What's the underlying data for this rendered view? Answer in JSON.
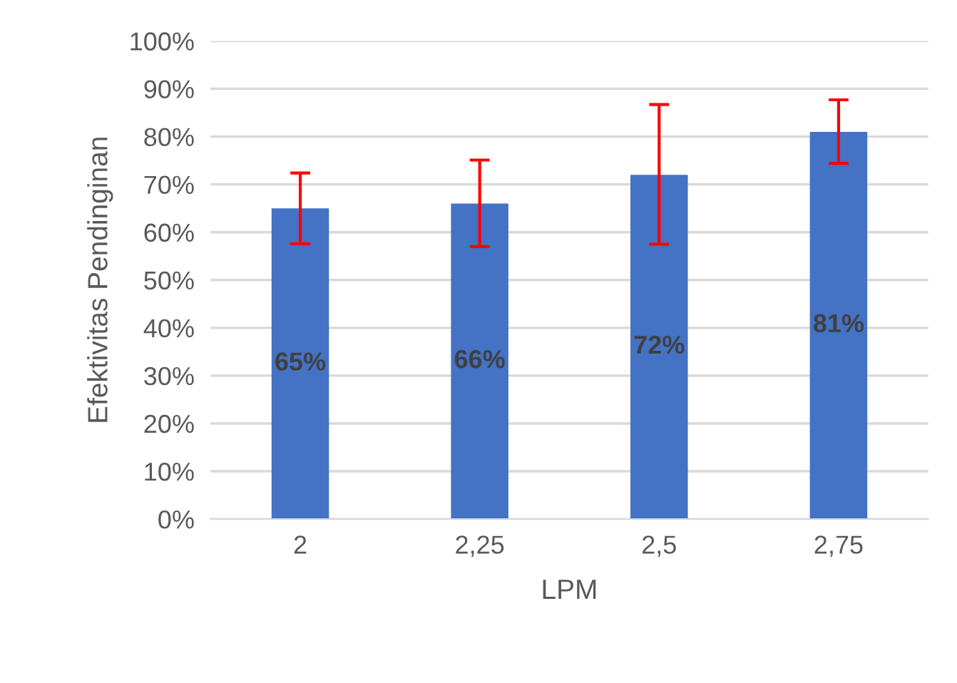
{
  "chart_data": {
    "type": "bar",
    "xlabel": "LPM",
    "ylabel": "Efektivitas Pendinginan",
    "categories": [
      "2",
      "2,25",
      "2,5",
      "2,75"
    ],
    "series": [
      {
        "color": "#4472c4",
        "values": [
          65,
          66,
          72,
          81
        ],
        "value_labels": [
          "65%",
          "66%",
          "72%",
          "81%"
        ],
        "errors": [
          [
            57.6,
            72.4
          ],
          [
            57.0,
            75.1
          ],
          [
            57.5,
            86.7
          ],
          [
            74.4,
            87.7
          ]
        ]
      }
    ],
    "ylim": [
      0,
      100
    ],
    "yticks": [
      {
        "value": 0,
        "label": "0%"
      },
      {
        "value": 10,
        "label": "10%"
      },
      {
        "value": 20,
        "label": "20%"
      },
      {
        "value": 30,
        "label": "30%"
      },
      {
        "value": 40,
        "label": "40%"
      },
      {
        "value": 50,
        "label": "50%"
      },
      {
        "value": 60,
        "label": "60%"
      },
      {
        "value": 70,
        "label": "70%"
      },
      {
        "value": 80,
        "label": "80%"
      },
      {
        "value": 90,
        "label": "90%"
      },
      {
        "value": 100,
        "label": "100%"
      }
    ],
    "grid": "y",
    "legend": false
  }
}
